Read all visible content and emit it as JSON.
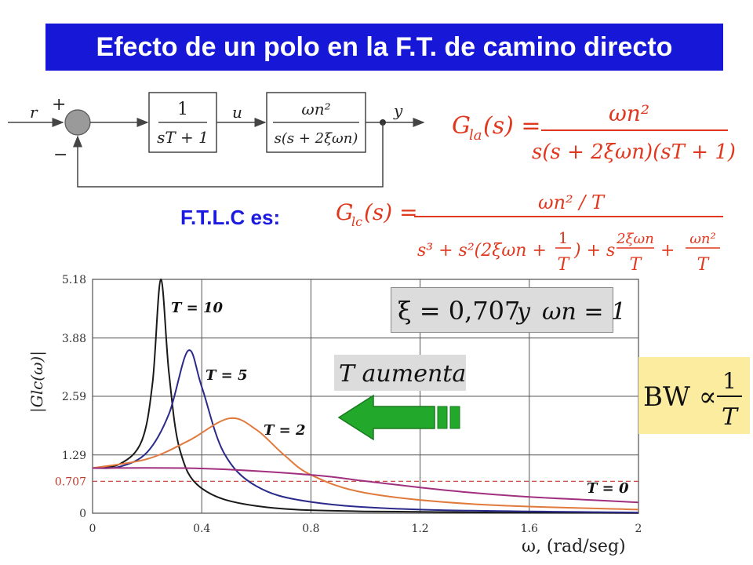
{
  "title": "Efecto de un polo en la F.T. de camino directo",
  "block_diagram": {
    "input_label": "r",
    "plus_sign": "+",
    "minus_sign": "−",
    "u_label": "u",
    "y_label": "y",
    "block1": {
      "num": "1",
      "den": "sT + 1"
    },
    "block2": {
      "num": "ωn²",
      "den": "s(s + 2ξωn)"
    }
  },
  "open_loop_eq": "Gla(s) = ωn² / (s(s + 2ξωn)(sT + 1))",
  "closed_loop_label": "F.T.L.C es:",
  "closed_loop_eq": "Glc(s) = (ωn²/T) / (s³ + s²(2ξωn + 1/T) + s(2ξωn/T) + ωn²/T)",
  "params_box": "ξ = 0,707  y  ωn = 1",
  "trend_box": "T  aumenta",
  "bw_box": "BW ∝ 1/T",
  "colors": {
    "title_bg": "#1717d8",
    "eq_red": "#e0381e",
    "ftlc_blue": "#1a1ae0",
    "arrow_green": "#22a82a",
    "ref_line": "#c0392b",
    "bw_bg": "#fbeca0"
  },
  "chart_data": {
    "type": "line",
    "title": "",
    "xlabel": "ω,  (rad/seg)",
    "ylabel": "|Glc(ω)|",
    "xlim": [
      0,
      2
    ],
    "ylim": [
      0,
      5.18
    ],
    "xticks": [
      "0",
      "0.4",
      "0.8",
      "1.2",
      "1.6",
      "2"
    ],
    "yticks": [
      "0",
      "1.29",
      "2.59",
      "3.88",
      "5.18"
    ],
    "grid": true,
    "reference_line": {
      "y": 0.707,
      "label": "0.707",
      "style": "dashed"
    },
    "series": [
      {
        "name": "T = 10",
        "T": 10,
        "color": "#1a1a1a",
        "peak": {
          "x": 0.25,
          "y": 5.18
        },
        "values": [
          [
            0,
            1.0
          ],
          [
            0.1,
            1.09
          ],
          [
            0.18,
            1.6
          ],
          [
            0.22,
            2.9
          ],
          [
            0.25,
            5.18
          ],
          [
            0.28,
            3.1
          ],
          [
            0.32,
            1.4
          ],
          [
            0.4,
            0.55
          ],
          [
            0.6,
            0.16
          ],
          [
            1.0,
            0.04
          ],
          [
            2.0,
            0.005
          ]
        ]
      },
      {
        "name": "T = 5",
        "T": 5,
        "color": "#2a2a8a",
        "peak": {
          "x": 0.35,
          "y": 3.6
        },
        "values": [
          [
            0,
            1.0
          ],
          [
            0.1,
            1.03
          ],
          [
            0.2,
            1.35
          ],
          [
            0.28,
            2.2
          ],
          [
            0.35,
            3.6
          ],
          [
            0.4,
            2.8
          ],
          [
            0.48,
            1.35
          ],
          [
            0.6,
            0.6
          ],
          [
            0.8,
            0.25
          ],
          [
            1.2,
            0.08
          ],
          [
            2.0,
            0.015
          ]
        ]
      },
      {
        "name": "T = 2",
        "T": 2,
        "color": "#e07a3c",
        "peak": {
          "x": 0.5,
          "y": 2.1
        },
        "values": [
          [
            0,
            1.0
          ],
          [
            0.2,
            1.2
          ],
          [
            0.35,
            1.6
          ],
          [
            0.5,
            2.1
          ],
          [
            0.6,
            1.85
          ],
          [
            0.7,
            1.3
          ],
          [
            0.8,
            0.85
          ],
          [
            1.0,
            0.45
          ],
          [
            1.4,
            0.2
          ],
          [
            2.0,
            0.08
          ]
        ]
      },
      {
        "name": "T = 0",
        "T": 0,
        "color": "#a0307e",
        "values": [
          [
            0,
            1.0
          ],
          [
            0.4,
            0.99
          ],
          [
            0.8,
            0.85
          ],
          [
            1.0,
            0.71
          ],
          [
            1.2,
            0.57
          ],
          [
            1.4,
            0.45
          ],
          [
            1.6,
            0.36
          ],
          [
            1.8,
            0.3
          ],
          [
            2.0,
            0.24
          ]
        ]
      }
    ]
  }
}
